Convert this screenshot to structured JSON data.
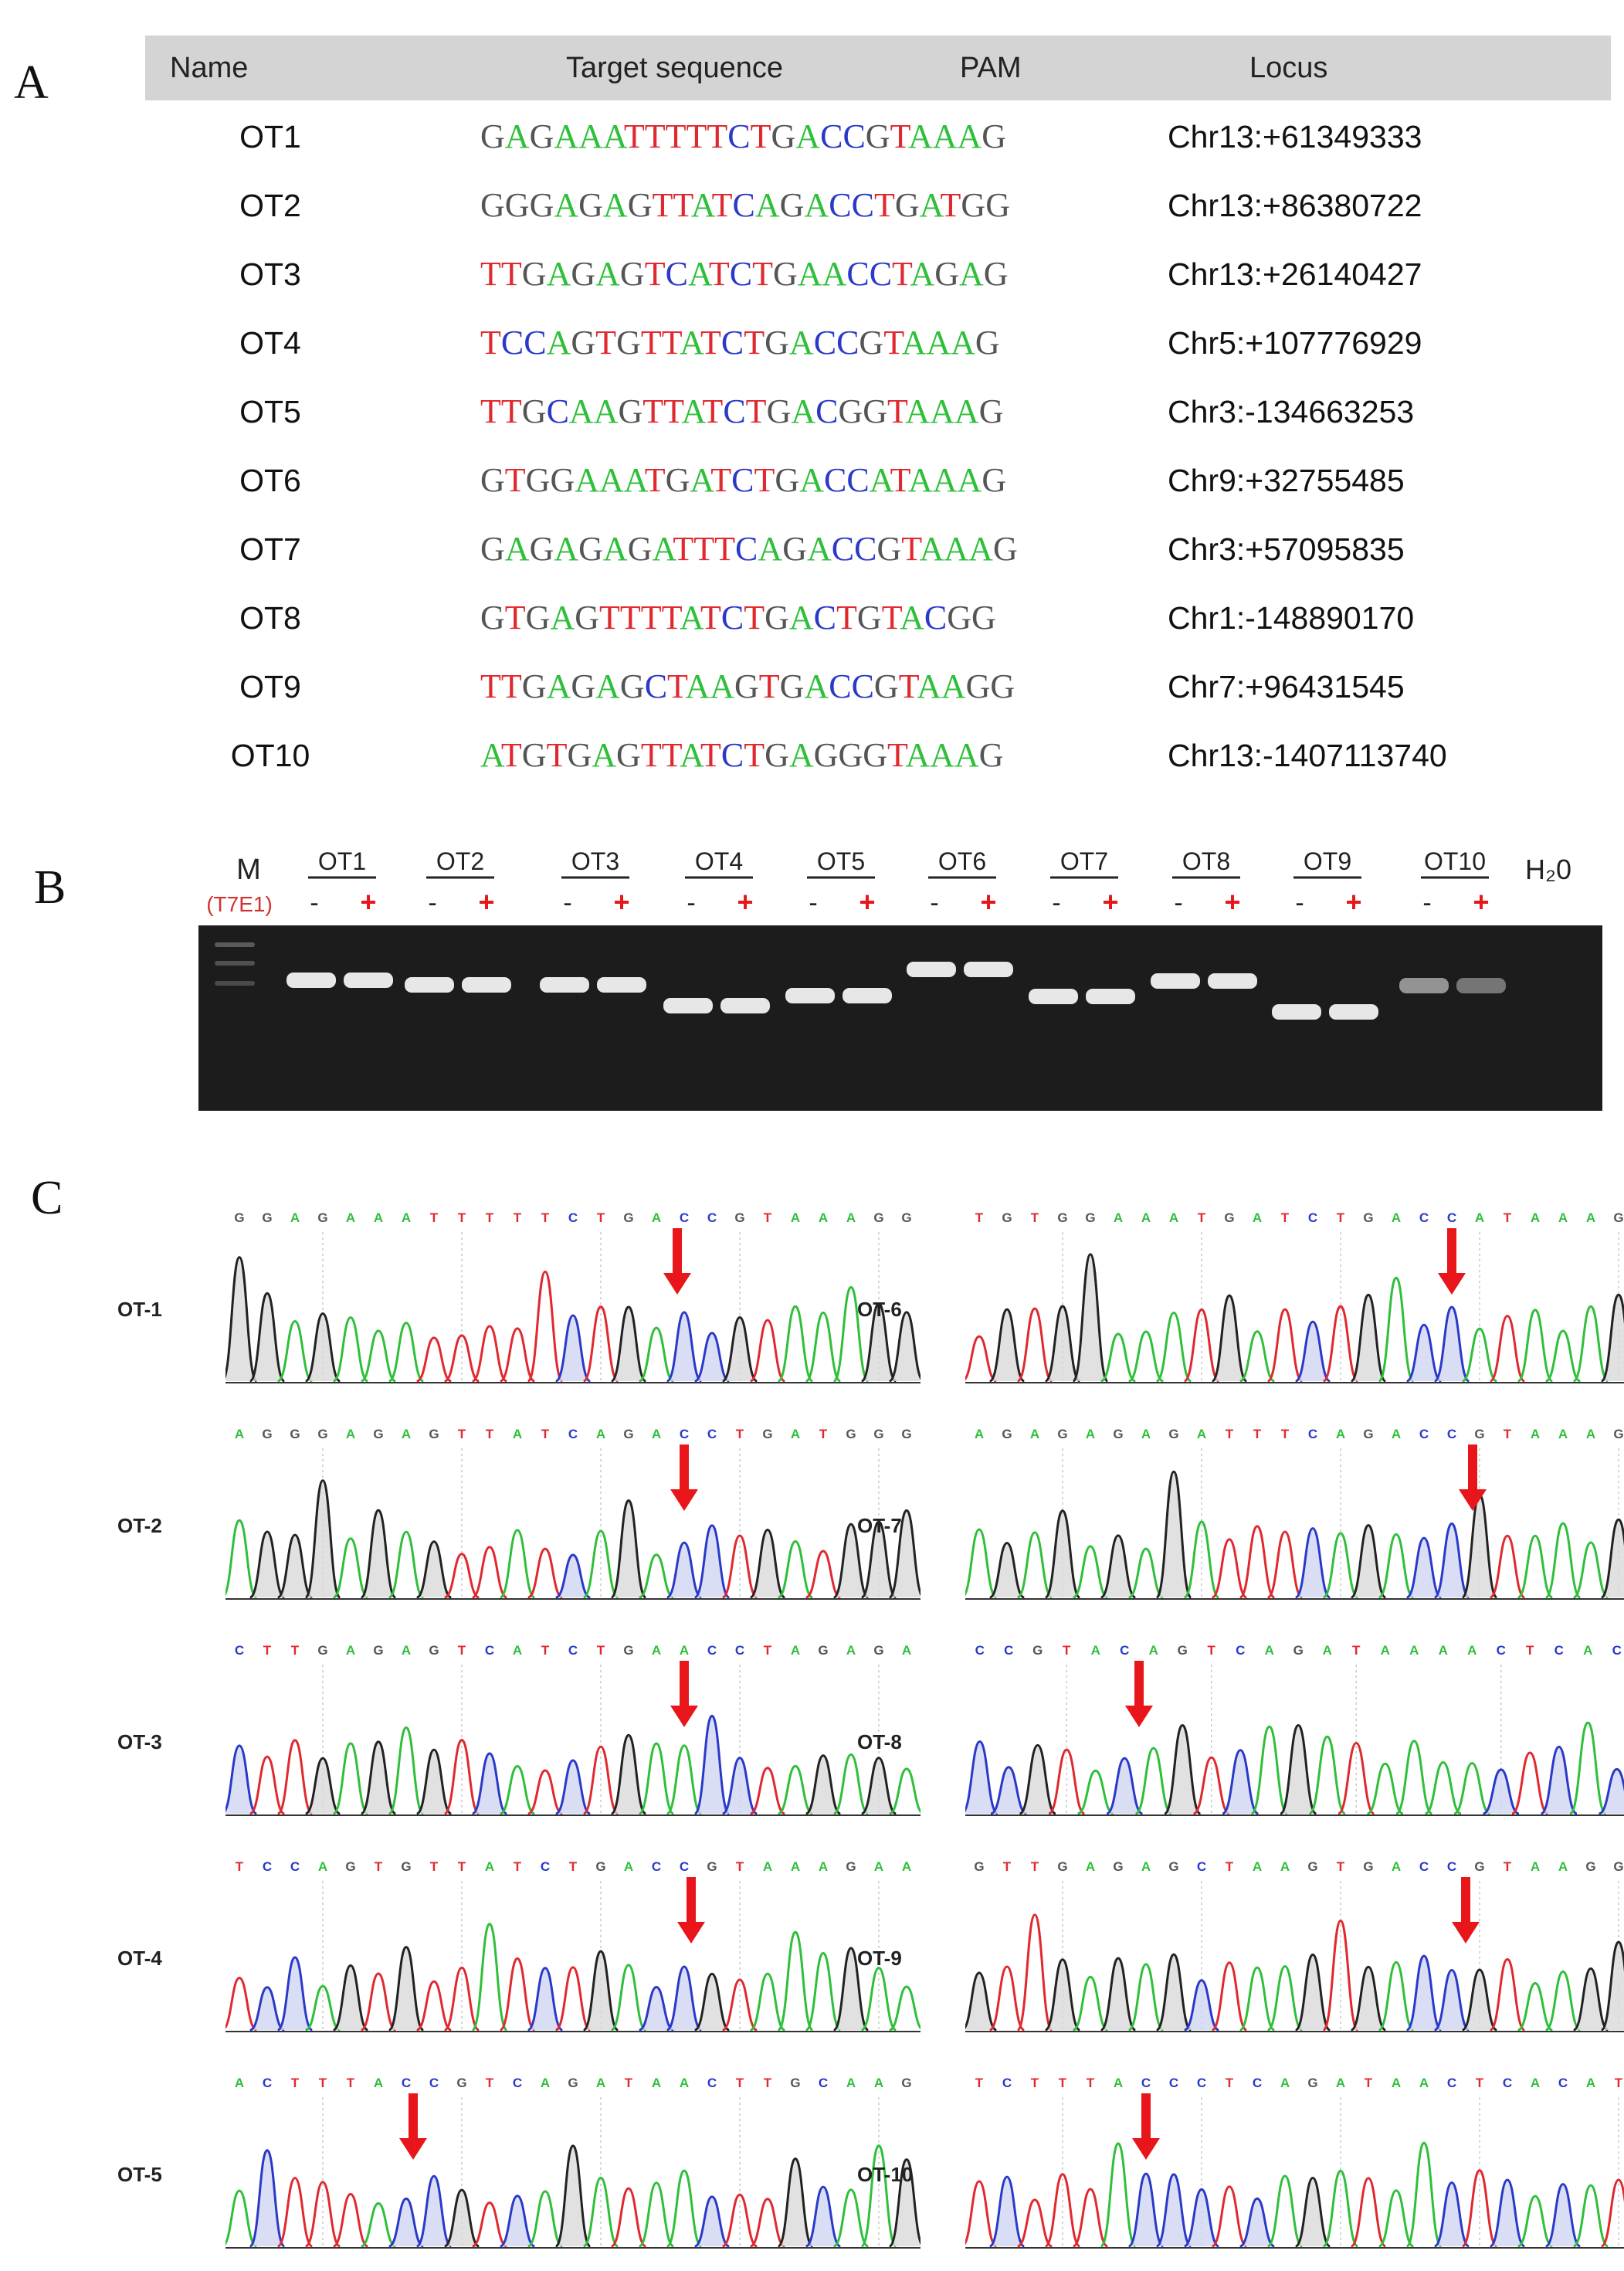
{
  "panel_a": {
    "letter": "A",
    "headers": {
      "name": "Name",
      "target": "Target sequence",
      "pam": "PAM",
      "locus": "Locus"
    },
    "rows": [
      {
        "name": "OT1",
        "sequence": "GAGAAATTTTTCTGACCGTAAAG",
        "locus": "Chr13:+61349333"
      },
      {
        "name": "OT2",
        "sequence": "GGGAGAGTTATCAGACCTGATGG",
        "locus": "Chr13:+86380722"
      },
      {
        "name": "OT3",
        "sequence": "TTGAGAGTCATCTGAACCTAGAG",
        "locus": "Chr13:+26140427"
      },
      {
        "name": "OT4",
        "sequence": "TCCAGTGTTATCTGACCGTAAAG",
        "locus": "Chr5:+107776929"
      },
      {
        "name": "OT5",
        "sequence": "TTGCAAGTTATCTGACGGTAAAG",
        "locus": "Chr3:-134663253"
      },
      {
        "name": "OT6",
        "sequence": "GTGGAAATGATCTGACCATAAAG",
        "locus": "Chr9:+32755485"
      },
      {
        "name": "OT7",
        "sequence": "GAGAGAGATTTCAGACCGTAAAG",
        "locus": "Chr3:+57095835"
      },
      {
        "name": "OT8",
        "sequence": "GTGAGTTTTATCTGACTGTACGG",
        "locus": "Chr1:-148890170"
      },
      {
        "name": "OT9",
        "sequence": "TTGAGAGCTAAGTGACCGTAAGG",
        "locus": "Chr7:+96431545"
      },
      {
        "name": "OT10",
        "sequence": "ATGTGAGTTATCTGAGGGTAAAG",
        "locus": "Chr13:-1407113740"
      }
    ]
  },
  "panel_b": {
    "letter": "B",
    "marker_label": "M",
    "enzyme_label": "(T7E1)",
    "water_label": "H₂0",
    "minus": "-",
    "plus": "+",
    "groups": [
      "OT1",
      "OT2",
      "OT3",
      "OT4",
      "OT5",
      "OT6",
      "OT7",
      "OT8",
      "OT9",
      "OT10"
    ]
  },
  "panel_c": {
    "letter": "C",
    "traces": [
      {
        "label": "OT-1",
        "seq": "GGAGAAATTTTTCTGACCGTAAAGG"
      },
      {
        "label": "OT-2",
        "seq": "AGGGAGAGTTATCAGACCTGATGGG"
      },
      {
        "label": "OT-3",
        "seq": "CTTGAGAGTCATCTGAACCTAGAGA"
      },
      {
        "label": "OT-4",
        "seq": "TCCAGTGTTATCTGACCGTAAAGAA"
      },
      {
        "label": "OT-5",
        "seq": "ACTTTACCGTCAGATAACTTGCAAG"
      },
      {
        "label": "OT-6",
        "seq": "TGTGGAAATGATCTGACCATAAAGA"
      },
      {
        "label": "OT-7",
        "seq": "AGAGAGAGATTTCAGACCGTAAAGC"
      },
      {
        "label": "OT-8",
        "seq": "CCGTACAGTCAGATAAAACTCACT"
      },
      {
        "label": "OT-9",
        "seq": "GTTGAGAGCTAAGTGACCGTAAGGG"
      },
      {
        "label": "OT-10",
        "seq": "TCTTTACCCTCAGATAACTCACATT"
      }
    ]
  },
  "colors": {
    "A": "#2fbf3a",
    "T": "#e0292f",
    "C": "#2a39c8",
    "G": "#555555",
    "arrow": "#e8161b",
    "header_bg": "#d4d4d4",
    "gel_bg": "#1c1c1c",
    "t7e1_label": "#d2312f"
  }
}
